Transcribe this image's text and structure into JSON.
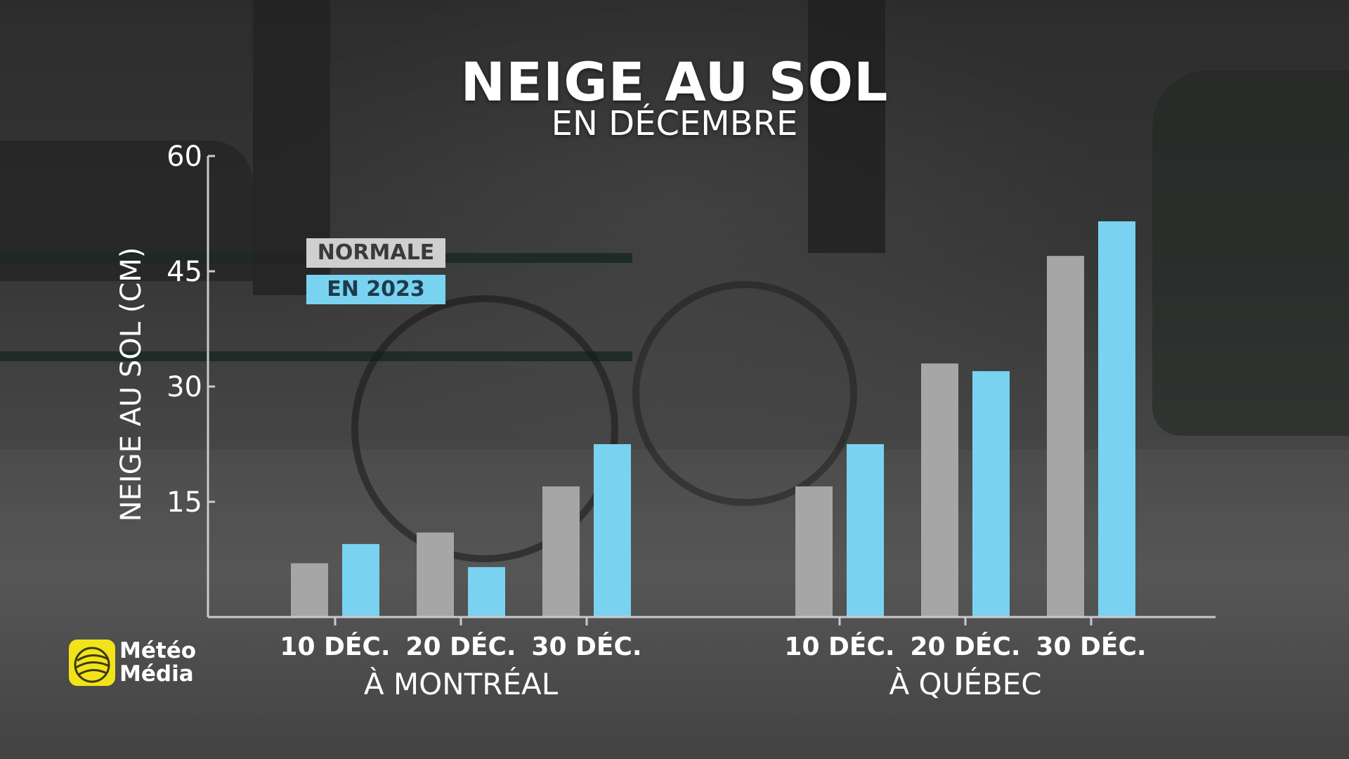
{
  "chart_data": {
    "type": "bar",
    "title": "NEIGE AU SOL",
    "subtitle": "EN DÉCEMBRE",
    "ylabel": "NEIGE AU SOL (CM)",
    "ylim": [
      0,
      60
    ],
    "yticks": [
      15,
      30,
      45,
      60
    ],
    "grid": false,
    "legend_placement": "top-left",
    "groups": [
      {
        "name": "À MONTRÉAL",
        "categories": [
          "10 DÉC.",
          "20 DÉC.",
          "30 DÉC."
        ],
        "series": [
          {
            "name": "NORMALE",
            "values": [
              7,
              11,
              17
            ]
          },
          {
            "name": "EN 2023",
            "values": [
              9.5,
              6.5,
              22.5
            ]
          }
        ]
      },
      {
        "name": "À QUÉBEC",
        "categories": [
          "10 DÉC.",
          "20 DÉC.",
          "30 DÉC."
        ],
        "series": [
          {
            "name": "NORMALE",
            "values": [
              17,
              33,
              47
            ]
          },
          {
            "name": "EN 2023",
            "values": [
              22.5,
              32,
              51.5
            ]
          }
        ]
      }
    ],
    "colors": {
      "NORMALE": "#a6a6a6",
      "EN 2023": "#79d3f0",
      "axis": "#c9c9d2"
    }
  },
  "legend": {
    "normale": "NORMALE",
    "en_2023": "EN 2023"
  },
  "logo": {
    "line1": "Météo",
    "line2": "Média",
    "icon": "meteomedia-globe-icon",
    "color": "#f2e21a"
  }
}
